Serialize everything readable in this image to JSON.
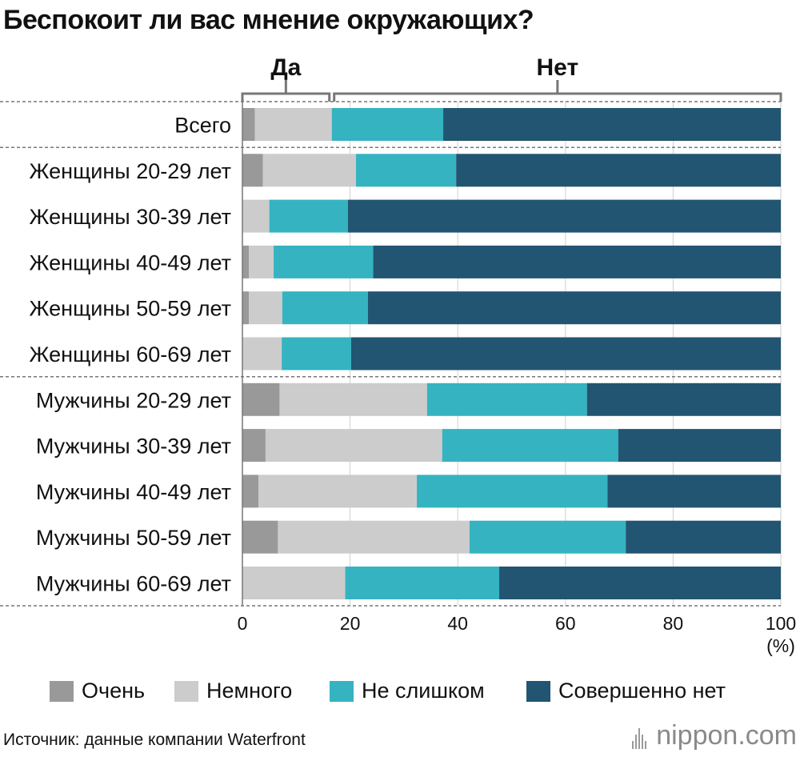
{
  "title": "Беспокоит ли вас мнение окружающих?",
  "chart_data": {
    "type": "bar",
    "orientation": "horizontal",
    "stacked": true,
    "title": "Беспокоит ли вас мнение окружающих?",
    "groups": [
      {
        "label": "Да",
        "series": [
          "Очень",
          "Немного"
        ]
      },
      {
        "label": "Нет",
        "series": [
          "Не слишком",
          "Совершенно нет"
        ]
      }
    ],
    "categories": [
      "Всего",
      "Женщины 20-29 лет",
      "Женщины 30-39 лет",
      "Женщины 40-49 лет",
      "Женщины 50-59 лет",
      "Женщины 60-69 лет",
      "Мужчины 20-29 лет",
      "Мужчины 30-39 лет",
      "Мужчины 40-49 лет",
      "Мужчины 50-59 лет",
      "Мужчины 60-69 лет"
    ],
    "series": [
      {
        "name": "Очень",
        "color": "#999999",
        "values": [
          2.3,
          3.8,
          0.0,
          1.2,
          1.2,
          0.0,
          6.9,
          4.3,
          3.0,
          6.6,
          0.0
        ]
      },
      {
        "name": "Немного",
        "color": "#cccccc",
        "values": [
          14.3,
          17.3,
          5.0,
          4.6,
          6.2,
          7.3,
          27.4,
          32.8,
          29.4,
          35.6,
          19.1
        ]
      },
      {
        "name": "Не слишком",
        "color": "#35b3c1",
        "values": [
          20.7,
          18.6,
          14.6,
          18.5,
          15.9,
          12.9,
          29.7,
          32.7,
          35.4,
          29.0,
          28.6
        ]
      },
      {
        "name": "Совершенно нет",
        "color": "#225571",
        "values": [
          62.7,
          60.3,
          80.4,
          75.7,
          76.7,
          79.8,
          36.0,
          30.2,
          32.2,
          28.8,
          52.3
        ]
      }
    ],
    "xlim": [
      0,
      100
    ],
    "xticks": [
      "0",
      "20",
      "40",
      "60",
      "80",
      "100"
    ],
    "xunit": "(%)",
    "grid": true,
    "legend_position": "bottom"
  },
  "source": "Источник: данные компании Waterfront",
  "logo": {
    "name": "nippon",
    "suffix": ".com"
  }
}
